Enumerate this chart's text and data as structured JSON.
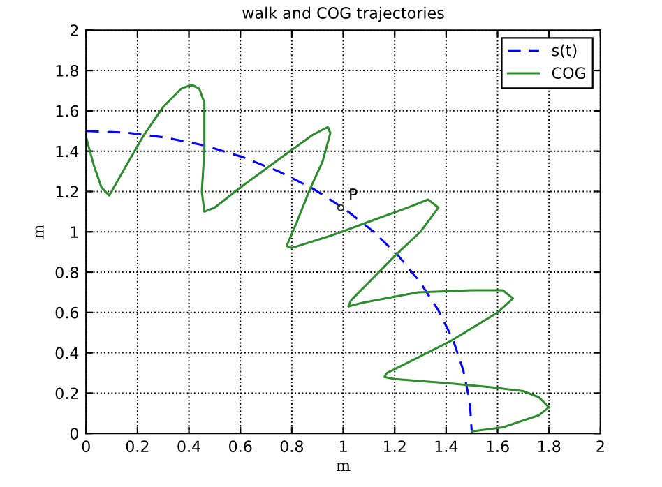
{
  "chart_data": {
    "type": "line",
    "title": "walk and COG trajectories",
    "xlabel": "m",
    "ylabel": "m",
    "xlim": [
      0,
      2
    ],
    "ylim": [
      0,
      2
    ],
    "xticks": [
      0,
      0.2,
      0.4,
      0.6,
      0.8,
      1,
      1.2,
      1.4,
      1.6,
      1.8,
      2
    ],
    "yticks": [
      0,
      0.2,
      0.4,
      0.6,
      0.8,
      1,
      1.2,
      1.4,
      1.6,
      1.8,
      2
    ],
    "grid": true,
    "legend": "top right",
    "annotations": [
      {
        "text": "P",
        "x": 0.99,
        "y": 1.12
      }
    ],
    "series": [
      {
        "name": "s(t)",
        "color": "#0000ff",
        "line_style": "dashed",
        "x": [
          0,
          0.157,
          0.312,
          0.464,
          0.61,
          0.75,
          0.882,
          1.004,
          1.115,
          1.214,
          1.299,
          1.37,
          1.427,
          1.467,
          1.492,
          1.5
        ],
        "values": [
          1.5,
          1.492,
          1.467,
          1.427,
          1.37,
          1.299,
          1.214,
          1.115,
          1.004,
          0.882,
          0.75,
          0.61,
          0.464,
          0.312,
          0.157,
          0
        ]
      },
      {
        "name": "COG",
        "color": "#2e8b2e",
        "line_style": "solid",
        "x": [
          0,
          0.03,
          0.06,
          0.09,
          0.13,
          0.22,
          0.3,
          0.37,
          0.41,
          0.44,
          0.46,
          0.46,
          0.45,
          0.46,
          0.5,
          0.6,
          0.75,
          0.88,
          0.94,
          0.95,
          0.92,
          0.87,
          0.82,
          0.78,
          0.8,
          0.95,
          1.1,
          1.25,
          1.33,
          1.37,
          1.3,
          1.2,
          1.1,
          1.03,
          1.02,
          1.08,
          1.29,
          1.5,
          1.62,
          1.66,
          1.6,
          1.42,
          1.28,
          1.17,
          1.16,
          1.2,
          1.4,
          1.57,
          1.7,
          1.76,
          1.8,
          1.76,
          1.62,
          1.5
        ],
        "values": [
          1.47,
          1.33,
          1.22,
          1.18,
          1.27,
          1.47,
          1.62,
          1.71,
          1.73,
          1.71,
          1.64,
          1.4,
          1.2,
          1.1,
          1.12,
          1.22,
          1.36,
          1.48,
          1.52,
          1.49,
          1.35,
          1.21,
          1.05,
          0.93,
          0.92,
          0.98,
          1.05,
          1.12,
          1.16,
          1.12,
          1,
          0.88,
          0.75,
          0.66,
          0.63,
          0.65,
          0.7,
          0.71,
          0.71,
          0.67,
          0.6,
          0.46,
          0.37,
          0.3,
          0.28,
          0.27,
          0.25,
          0.23,
          0.21,
          0.18,
          0.13,
          0.09,
          0.03,
          0.01
        ]
      }
    ]
  }
}
